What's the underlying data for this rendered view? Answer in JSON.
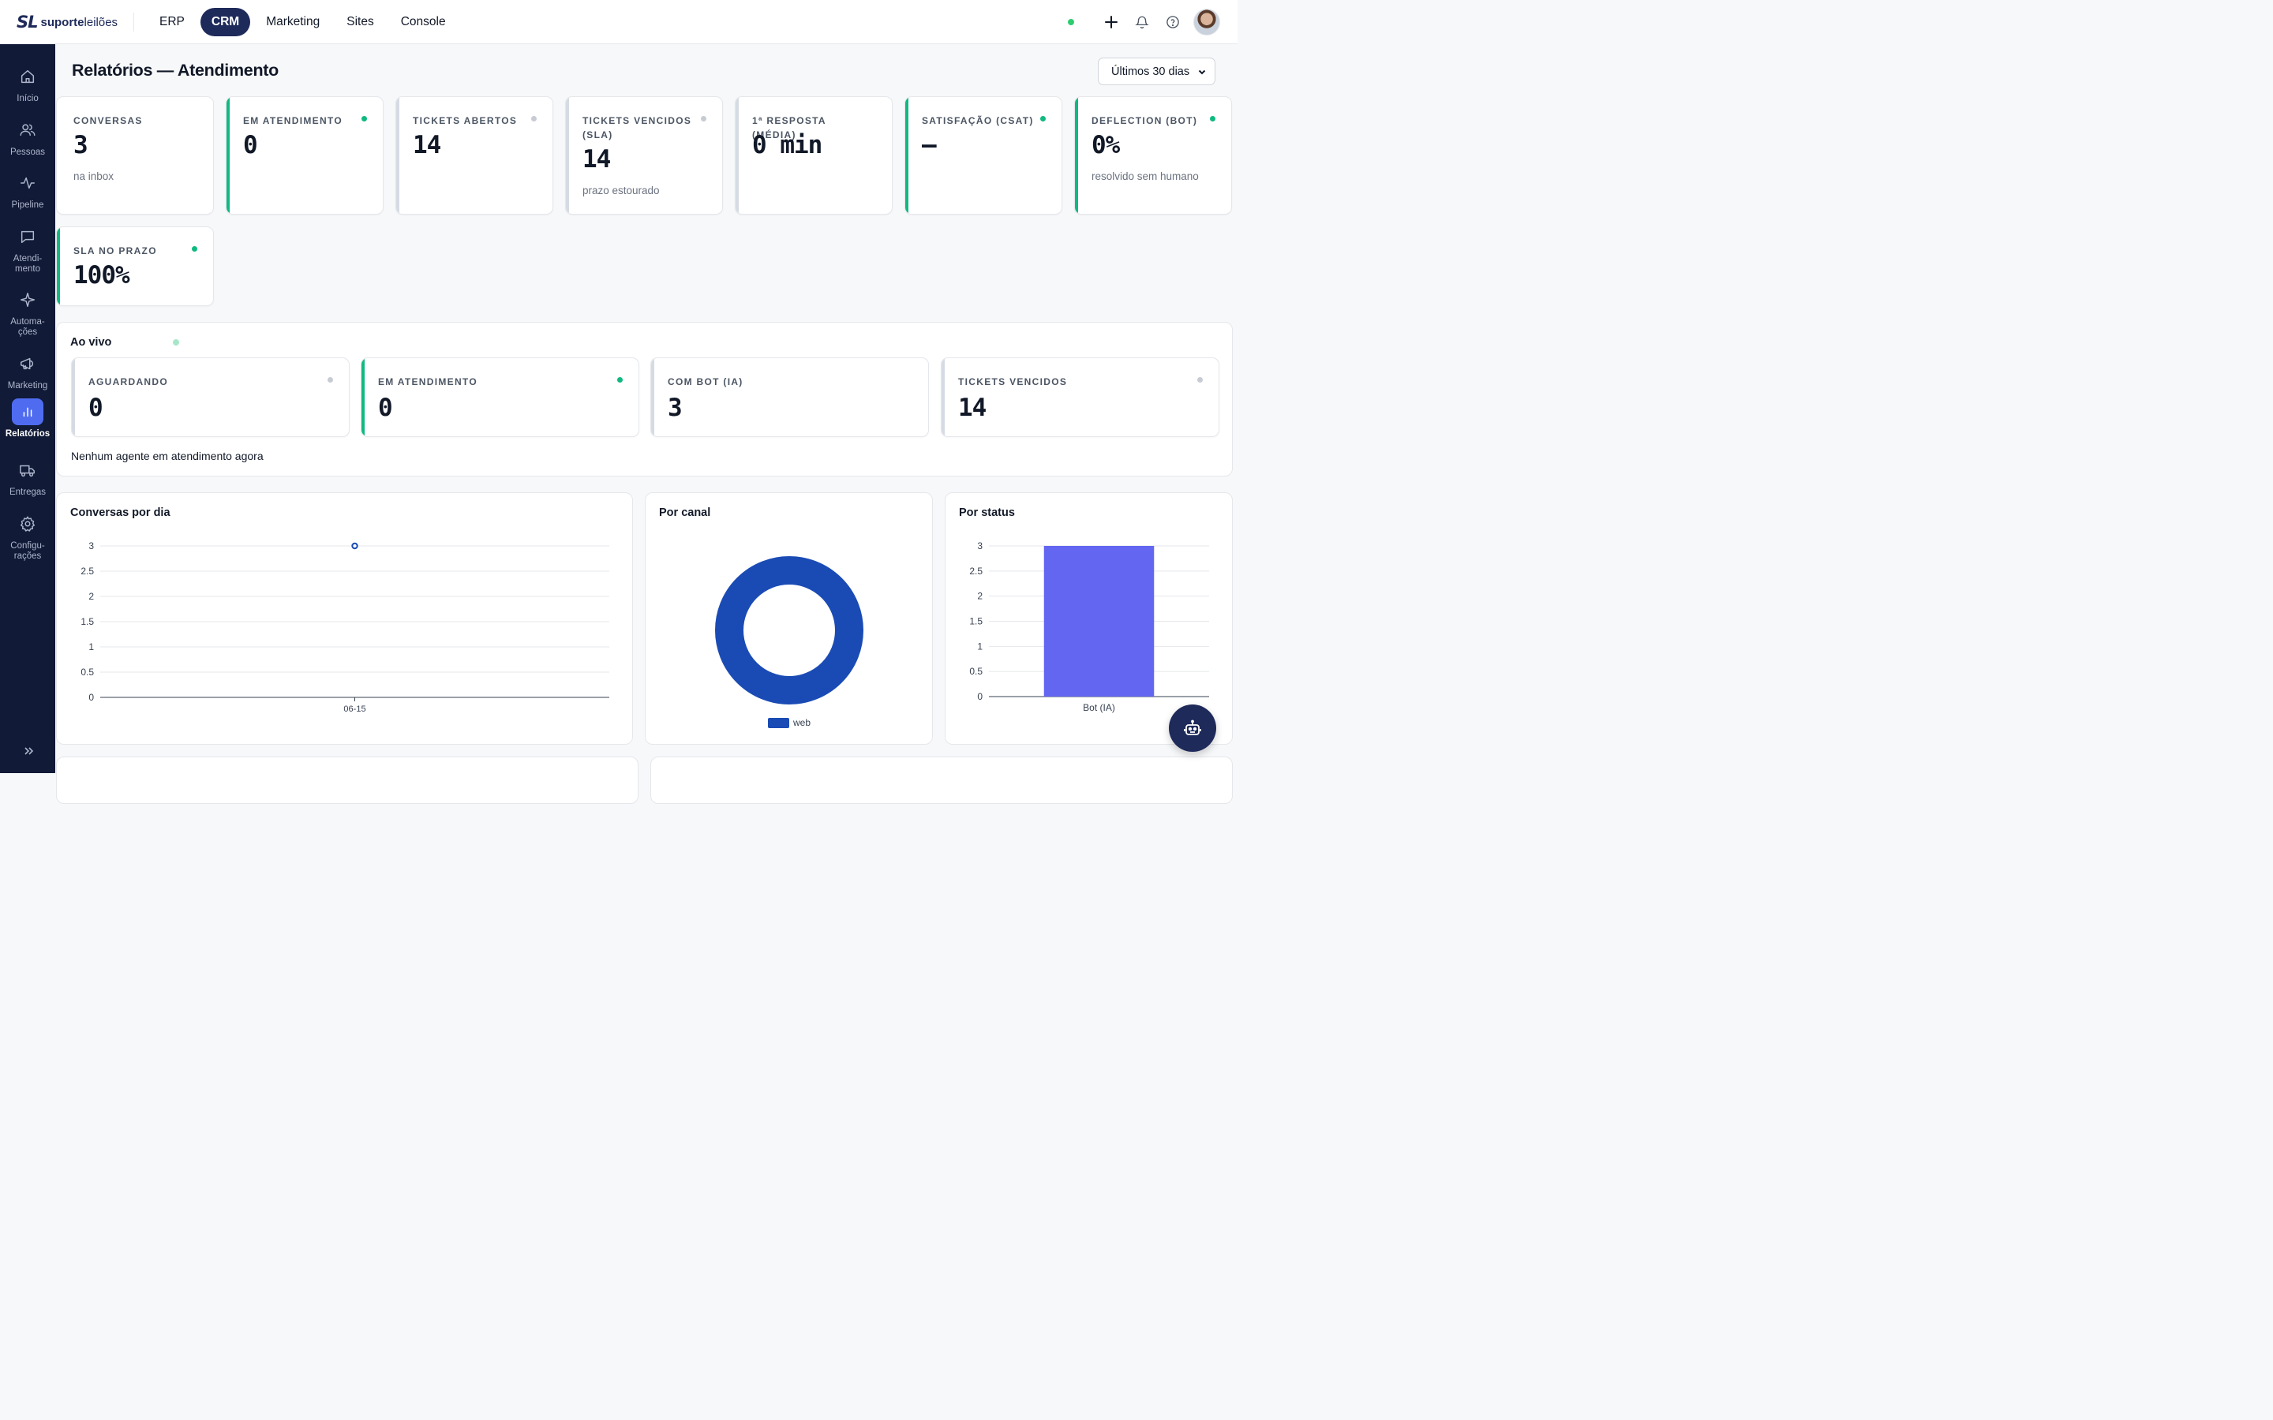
{
  "brand": {
    "mark": "SL",
    "name_bold": "suporte",
    "name_light": "leilões"
  },
  "topnav": [
    {
      "label": "ERP",
      "active": false
    },
    {
      "label": "CRM",
      "active": true
    },
    {
      "label": "Marketing",
      "active": false
    },
    {
      "label": "Sites",
      "active": false
    },
    {
      "label": "Console",
      "active": false
    }
  ],
  "sidebar": [
    {
      "label": "Início",
      "icon": "home-icon"
    },
    {
      "label": "Pessoas",
      "icon": "people-icon"
    },
    {
      "label": "Pipeline",
      "icon": "activity-icon"
    },
    {
      "label": "Atendi-\nmento",
      "icon": "chat-icon"
    },
    {
      "label": "Automa-\nções",
      "icon": "sparkle-icon"
    },
    {
      "label": "Marketing",
      "icon": "megaphone-icon"
    },
    {
      "label": "Relatórios",
      "icon": "bar-chart-icon",
      "active": true
    },
    {
      "label": "Entregas",
      "icon": "truck-icon"
    },
    {
      "label": "Configu-\nrações",
      "icon": "gear-icon"
    }
  ],
  "page": {
    "title": "Relatórios — Atendimento",
    "range": "Últimos 30 dias"
  },
  "kpis": [
    {
      "label": "CONVERSAS",
      "value": "3",
      "sub": "na inbox",
      "accent": "none",
      "dot": false
    },
    {
      "label": "EM ATENDIMENTO",
      "value": "0",
      "sub": "",
      "accent": "green",
      "dot": true
    },
    {
      "label": "TICKETS ABERTOS",
      "value": "14",
      "sub": "",
      "accent": "gray",
      "dot": true
    },
    {
      "label": "TICKETS VENCIDOS (SLA)",
      "value": "14",
      "sub": "prazo estourado",
      "accent": "gray",
      "dot": true
    },
    {
      "label": "1ª RESPOSTA (MÉDIA)",
      "value": "0 min",
      "sub": "",
      "accent": "gray",
      "dot": false
    },
    {
      "label": "SATISFAÇÃO (CSAT)",
      "value": "—",
      "sub": "",
      "accent": "green",
      "dot": true
    },
    {
      "label": "DEFLECTION (BOT)",
      "value": "0%",
      "sub": "resolvido sem humano",
      "accent": "green",
      "dot": true
    },
    {
      "label": "SLA NO PRAZO",
      "value": "100%",
      "sub": "",
      "accent": "green",
      "dot": true
    }
  ],
  "live": {
    "title": "Ao vivo",
    "cards": [
      {
        "label": "AGUARDANDO",
        "value": "0",
        "accent": "gray",
        "dot": true
      },
      {
        "label": "EM ATENDIMENTO",
        "value": "0",
        "accent": "green",
        "dot": true
      },
      {
        "label": "COM BOT (IA)",
        "value": "3",
        "accent": "gray",
        "dot": false
      },
      {
        "label": "TICKETS VENCIDOS",
        "value": "14",
        "accent": "gray",
        "dot": true
      }
    ],
    "note": "Nenhum agente em atendimento agora"
  },
  "colors": {
    "navy": "#1e2a5a",
    "green": "#10b981",
    "donut": "#1a4bb5",
    "bar": "#6366f1"
  },
  "chart_data": [
    {
      "type": "line",
      "title": "Conversas por dia",
      "x": [
        "06-15"
      ],
      "series": [
        {
          "values": [
            3
          ]
        }
      ],
      "ylim": [
        0,
        3
      ],
      "yticks": [
        "0",
        "0.5",
        "1",
        "1.5",
        "2",
        "2.5",
        "3"
      ],
      "grid": true
    },
    {
      "type": "pie",
      "title": "Por canal",
      "categories": [
        "web"
      ],
      "values": [
        3
      ],
      "legend": "bottom"
    },
    {
      "type": "bar",
      "title": "Por status",
      "categories": [
        "Bot (IA)"
      ],
      "values": [
        3
      ],
      "ylim": [
        0,
        3
      ],
      "yticks": [
        "0",
        "0.5",
        "1",
        "1.5",
        "2",
        "2.5",
        "3"
      ],
      "grid": true
    }
  ]
}
